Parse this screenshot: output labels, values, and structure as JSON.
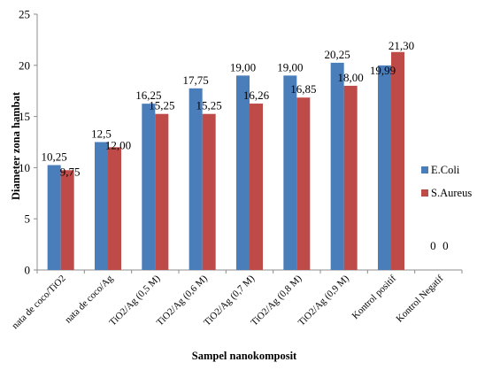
{
  "chart_data": {
    "type": "bar",
    "title": "",
    "xlabel": "Sampel nanokomposit",
    "ylabel": "Diameter zona hambat",
    "ylim": [
      0,
      25
    ],
    "yticks": [
      "0",
      "5",
      "10",
      "15",
      "20",
      "25"
    ],
    "grid": false,
    "legend_position": "right",
    "categories": [
      "nata de coco/TiO2",
      "nata de coco/Ag",
      "TiO2/Ag (0,5 M)",
      "TiO2/Ag (0,6 M)",
      "TiO2/Ag (0,7 M)",
      "TiO2/Ag (0,8 M)",
      "TiO2/Ag (0,9 M)",
      "Kontrol positif",
      "Kontrol Negatif"
    ],
    "series": [
      {
        "name": "E.Coli",
        "color": "#4a7ebb",
        "values": [
          10.25,
          12.5,
          16.25,
          17.75,
          19.0,
          19.0,
          20.25,
          19.99,
          0
        ],
        "labels": [
          "10,25",
          "12,5",
          "16,25",
          "17,75",
          "19,00",
          "19,00",
          "20,25",
          "19,99",
          "0"
        ]
      },
      {
        "name": "S.Aureus",
        "color": "#be4b48",
        "values": [
          9.75,
          12.0,
          15.25,
          15.25,
          16.26,
          16.85,
          18.0,
          21.3,
          0
        ],
        "labels": [
          "9,75",
          "12,00",
          "15,25",
          "15,25",
          "16,26",
          "16,85",
          "18,00",
          "21,30",
          "0"
        ]
      }
    ]
  }
}
